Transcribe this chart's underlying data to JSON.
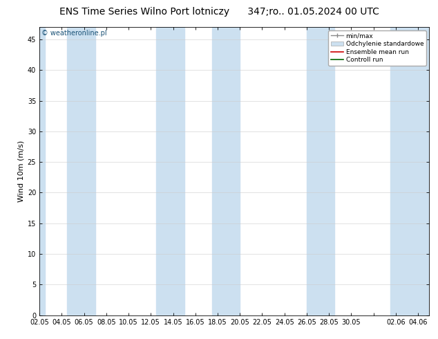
{
  "title_left": "ENS Time Series Wilno Port lotniczy",
  "title_right": "347;ro.. 01.05.2024 00 UTC",
  "ylabel": "Wind 10m (m/s)",
  "watermark": "© weatheronline.pl",
  "ylim": [
    0,
    47
  ],
  "yticks": [
    0,
    5,
    10,
    15,
    20,
    25,
    30,
    35,
    40,
    45
  ],
  "bg_color": "#ffffff",
  "plot_bg": "#ffffff",
  "band_color": "#cce0f0",
  "xtick_labels": [
    "02.05",
    "04.05",
    "06.05",
    "08.05",
    "10.05",
    "12.05",
    "14.05",
    "16.05",
    "18.05",
    "20.05",
    "22.05",
    "24.05",
    "26.05",
    "28.05",
    "30.05",
    "",
    "02.06",
    "04.06"
  ],
  "xtick_positions": [
    0,
    2,
    4,
    6,
    8,
    10,
    12,
    14,
    16,
    18,
    20,
    22,
    24,
    26,
    28,
    30,
    32,
    34
  ],
  "xlim": [
    0,
    35
  ],
  "band_spans": [
    [
      2.5,
      5.0
    ],
    [
      10.5,
      13.0
    ],
    [
      15.5,
      18.0
    ],
    [
      24.0,
      26.5
    ],
    [
      31.5,
      35.0
    ],
    [
      0,
      0.5
    ]
  ],
  "legend_labels": [
    "min/max",
    "Odchylenie standardowe",
    "Ensemble mean run",
    "Controll run"
  ],
  "title_fontsize": 10,
  "tick_fontsize": 7,
  "ylabel_fontsize": 8,
  "watermark_color": "#1a5276",
  "watermark_fontsize": 7
}
